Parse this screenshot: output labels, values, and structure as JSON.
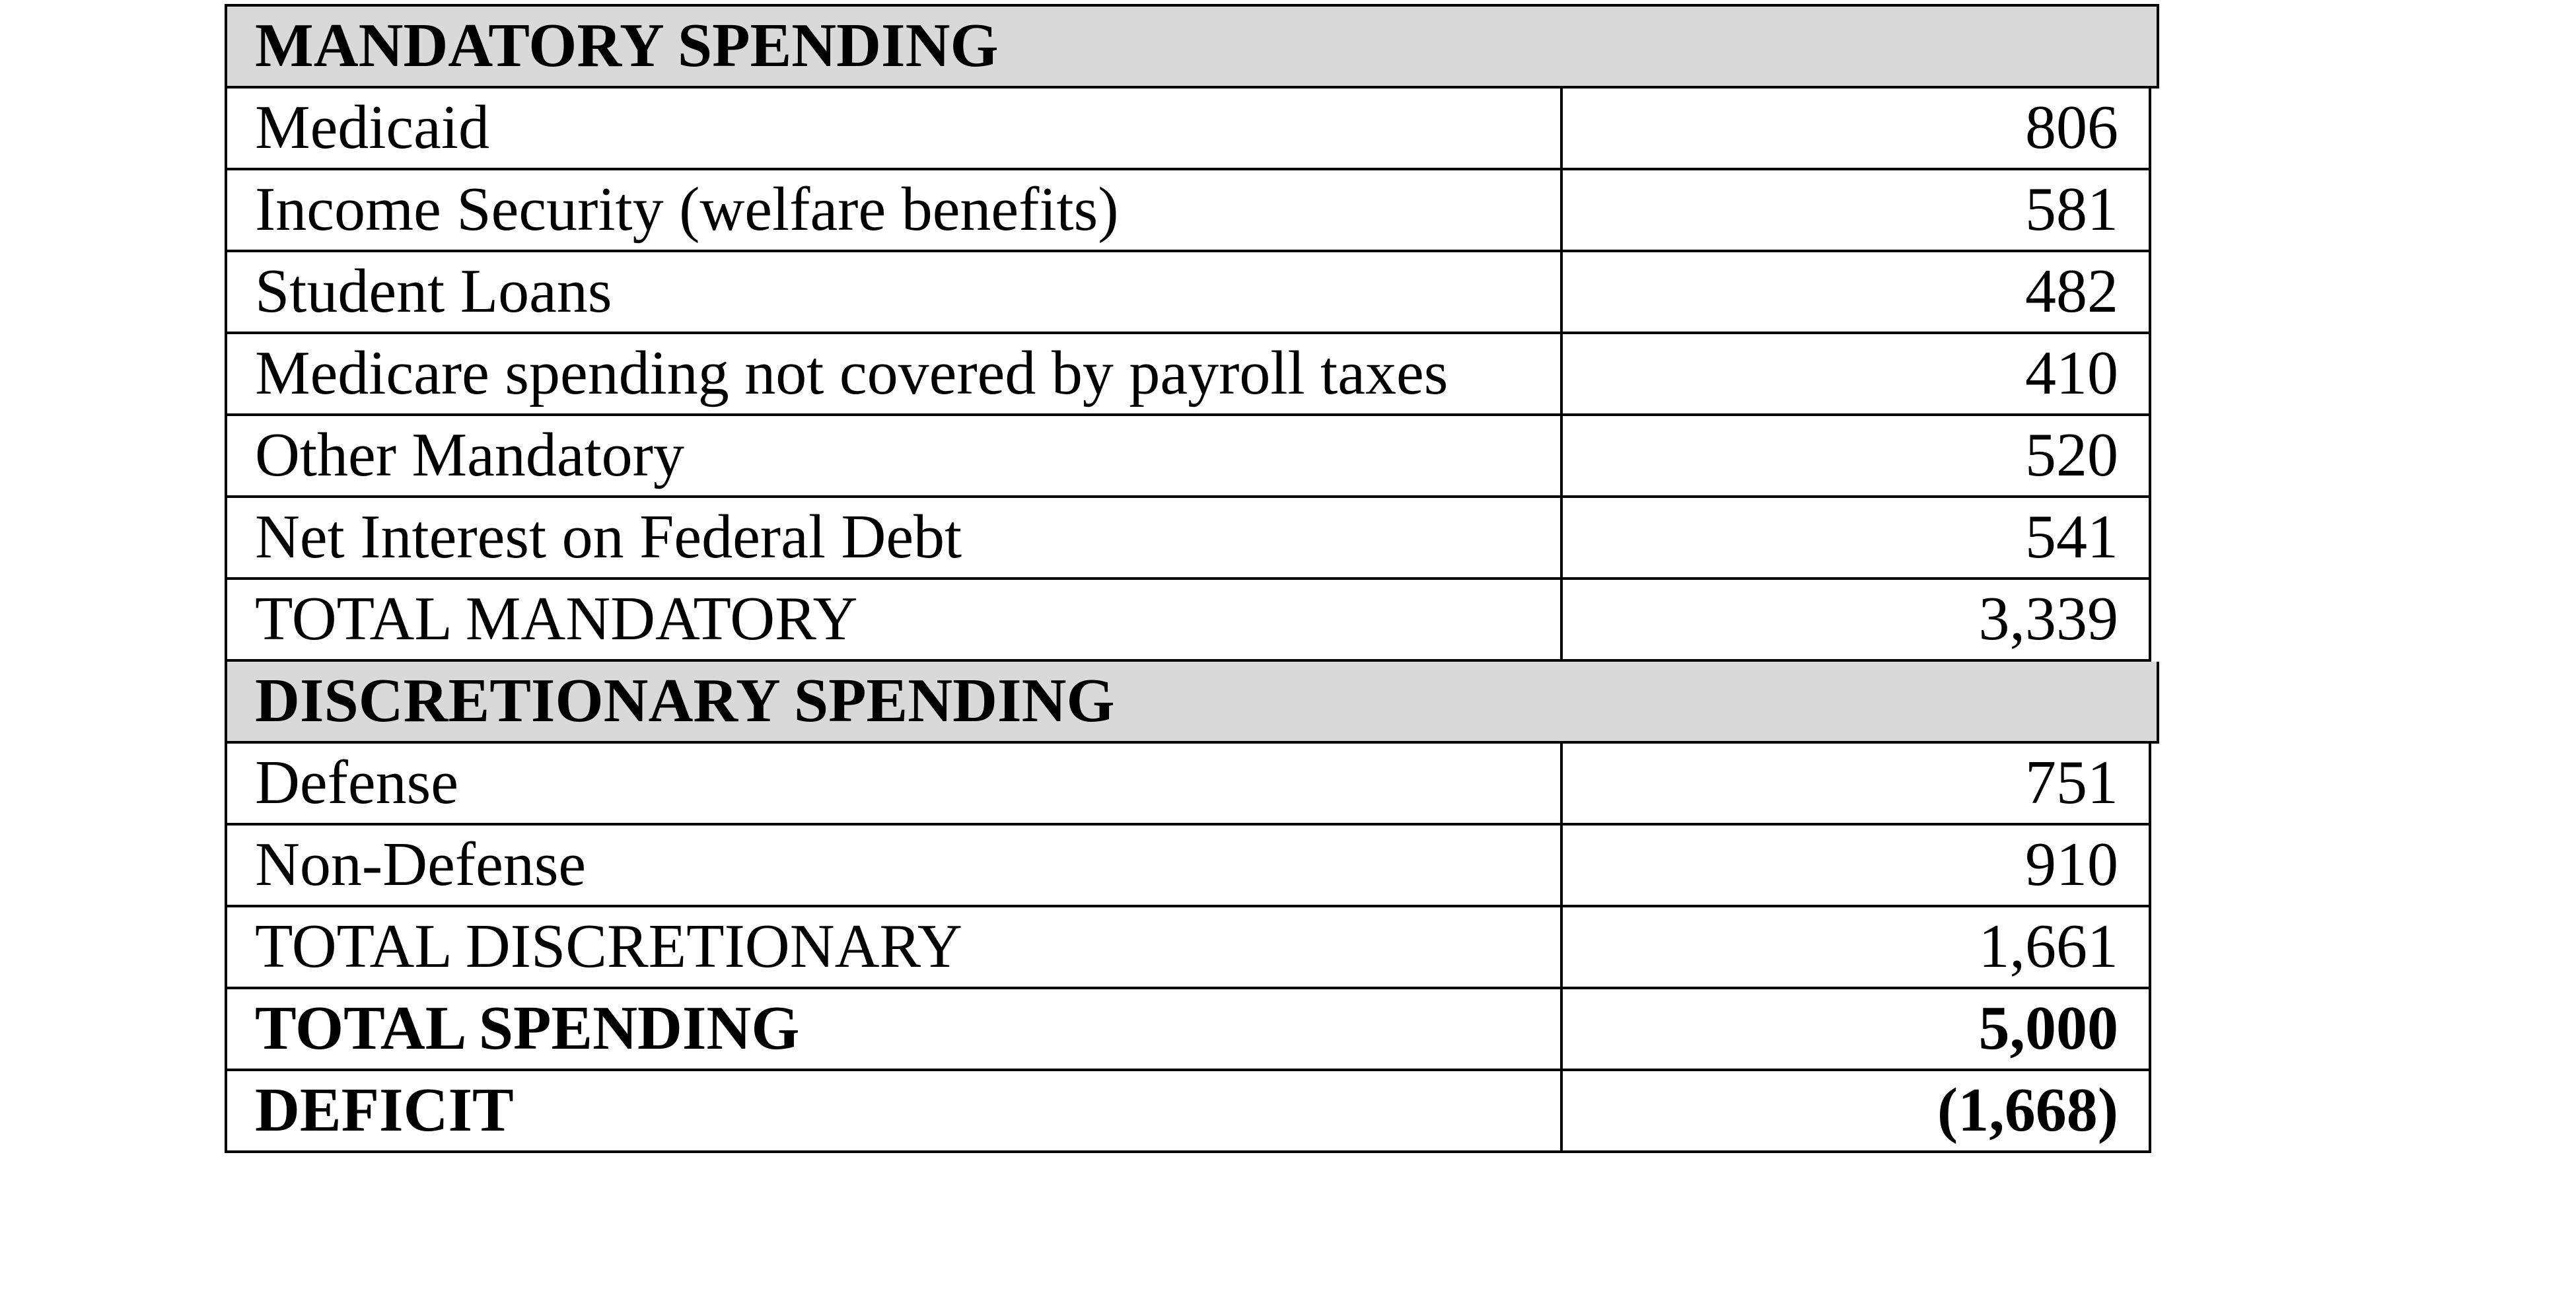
{
  "table": {
    "name": "federal-budget-spending-table",
    "columns": [
      "category",
      "amount"
    ],
    "rows": [
      {
        "type": "section",
        "label": "MANDATORY SPENDING"
      },
      {
        "type": "item",
        "label": "Medicaid",
        "value": "806"
      },
      {
        "type": "item",
        "label": "Income Security (welfare benefits)",
        "value": "581"
      },
      {
        "type": "item",
        "label": "Student Loans",
        "value": "482"
      },
      {
        "type": "item",
        "label": "Medicare spending not covered by payroll taxes",
        "value": "410"
      },
      {
        "type": "item",
        "label": "Other Mandatory",
        "value": "520"
      },
      {
        "type": "item",
        "label": "Net Interest on Federal Debt",
        "value": "541"
      },
      {
        "type": "item",
        "label": "TOTAL MANDATORY",
        "value": "3,339"
      },
      {
        "type": "section",
        "label": "DISCRETIONARY SPENDING"
      },
      {
        "type": "item",
        "label": "Defense",
        "value": "751"
      },
      {
        "type": "item",
        "label": "Non-Defense",
        "value": "910"
      },
      {
        "type": "item",
        "label": "TOTAL DISCRETIONARY",
        "value": "1,661"
      },
      {
        "type": "total",
        "label": "TOTAL SPENDING",
        "value": "5,000"
      },
      {
        "type": "total",
        "label": "DEFICIT",
        "value": "(1,668)"
      }
    ]
  },
  "colors": {
    "section_header_bg": "#d9d9d9",
    "border": "#000000",
    "text": "#000000",
    "page_bg": "#ffffff"
  }
}
